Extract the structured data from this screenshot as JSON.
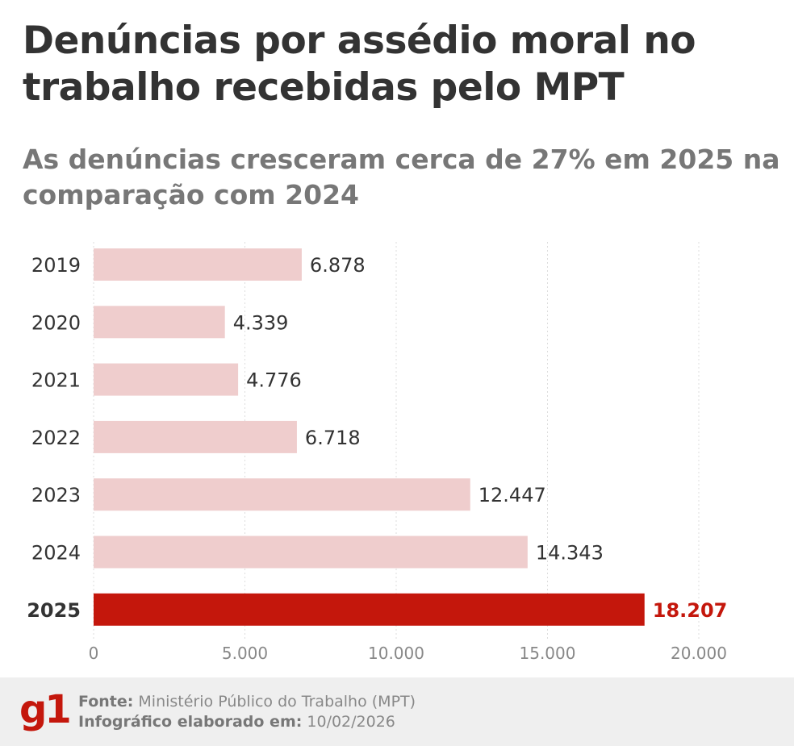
{
  "title": "Denúncias por assédio moral no trabalho recebidas pelo MPT",
  "subtitle": "As denúncias cresceram cerca de 27% em 2025 na comparação com 2024",
  "chart_data": {
    "type": "bar",
    "orientation": "horizontal",
    "categories": [
      "2019",
      "2020",
      "2021",
      "2022",
      "2023",
      "2024",
      "2025"
    ],
    "values": [
      6878,
      4339,
      4776,
      6718,
      12447,
      14343,
      18207
    ],
    "value_labels": [
      "6.878",
      "4.339",
      "4.776",
      "6.718",
      "12.447",
      "14.343",
      "18.207"
    ],
    "highlight": "2025",
    "xlim": [
      0,
      20000
    ],
    "xticks": [
      0,
      5000,
      10000,
      15000,
      20000
    ],
    "xtick_labels": [
      "0",
      "5.000",
      "10.000",
      "15.000",
      "20.000"
    ],
    "grid": "vertical dotted",
    "colors": {
      "bar": "#efcdcd",
      "highlight": "#c4170c"
    }
  },
  "footer": {
    "logo": "g1",
    "source_label": "Fonte:",
    "source": "Ministério Público do Trabalho (MPT)",
    "date_label": "Infográfico elaborado em:",
    "date": "10/02/2026"
  }
}
